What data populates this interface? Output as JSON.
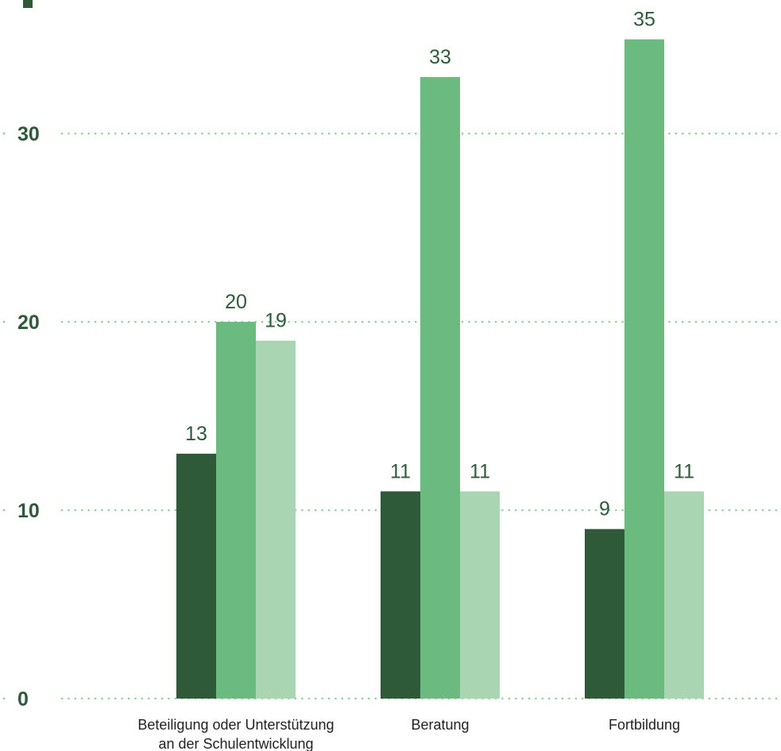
{
  "chart_data": {
    "type": "bar",
    "categories": [
      "Beteiligung oder Unterstützung\nan der Schulentwicklung",
      "Beratung",
      "Fortbildung"
    ],
    "series": [
      {
        "values": [
          13,
          11,
          9
        ],
        "color": "#2f5a3a"
      },
      {
        "values": [
          20,
          33,
          35
        ],
        "color": "#6bbb80"
      },
      {
        "values": [
          19,
          11,
          11
        ],
        "color": "#aad5b2"
      }
    ],
    "ylim": [
      0,
      38
    ],
    "yticks": [
      0,
      10,
      20,
      30
    ],
    "grid": true,
    "grid_color": "#8fcf9a",
    "label_color": "#2f5a3a",
    "text_color": "#222222"
  }
}
